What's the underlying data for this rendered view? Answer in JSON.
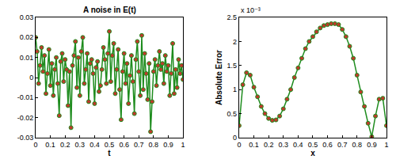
{
  "chart_data": [
    {
      "type": "line",
      "title": "A noise in E(t)",
      "xlabel": "t",
      "x": [
        0,
        0.01,
        0.02,
        0.03,
        0.04,
        0.05,
        0.06,
        0.07,
        0.08,
        0.09,
        0.1,
        0.11,
        0.12,
        0.13,
        0.14,
        0.15,
        0.16,
        0.17,
        0.18,
        0.19,
        0.2,
        0.21,
        0.22,
        0.23,
        0.24,
        0.25,
        0.26,
        0.27,
        0.28,
        0.29,
        0.3,
        0.31,
        0.32,
        0.33,
        0.34,
        0.35,
        0.36,
        0.37,
        0.38,
        0.39,
        0.4,
        0.41,
        0.42,
        0.43,
        0.44,
        0.45,
        0.46,
        0.47,
        0.48,
        0.49,
        0.5,
        0.51,
        0.52,
        0.53,
        0.54,
        0.55,
        0.56,
        0.57,
        0.58,
        0.59,
        0.6,
        0.61,
        0.62,
        0.63,
        0.64,
        0.65,
        0.66,
        0.67,
        0.68,
        0.69,
        0.7,
        0.71,
        0.72,
        0.73,
        0.74,
        0.75,
        0.76,
        0.77,
        0.78,
        0.79,
        0.8,
        0.81,
        0.82,
        0.83,
        0.84,
        0.85,
        0.86,
        0.87,
        0.88,
        0.89,
        0.9,
        0.91,
        0.92,
        0.93,
        0.94,
        0.95,
        0.96,
        0.97,
        0.98,
        0.99,
        1
      ],
      "values": [
        0.02,
        0.013,
        -0.003,
        0.006,
        0.015,
        0.003,
        0.011,
        -0.008,
        0.002,
        0.014,
        -0.004,
        0.007,
        -0.009,
        0.004,
        0.01,
        -0.003,
        -0.019,
        0.008,
        0.012,
        -0.002,
        0.009,
        0.004,
        -0.014,
        0.003,
        -0.025,
        0.006,
        0.011,
        0.018,
        -0.005,
        0.01,
        -0.009,
        0.013,
        0.02,
        -0.003,
        0.004,
        0.012,
        -0.012,
        0.007,
        0.009,
        0.002,
        -0.013,
        0.005,
        0.008,
        -0.007,
        -0.004,
        0.004,
        0.015,
        0.009,
        -0.003,
        0.012,
        0.023,
        -0.002,
        0.011,
        0.017,
        -0.008,
        0.004,
        0.014,
        -0.006,
        -0.021,
        0.003,
        0.012,
        -0.003,
        0.007,
        -0.013,
        0.001,
        0.011,
        -0.002,
        -0.018,
        0.009,
        0.018,
        0.003,
        -0.009,
        0.021,
        -0.006,
        0.012,
        0.002,
        -0.011,
        0.007,
        -0.027,
        -0.012,
        0.003,
        0.009,
        -0.004,
        0.006,
        0.013,
        0.004,
        0.007,
        -0.003,
        0.011,
        0.003,
        0.006,
        -0.009,
        0.002,
        0.017,
        -0.008,
        0.004,
        -0.005,
        0.009,
        0.002,
        0.006,
        -0.001
      ],
      "xlim": [
        0,
        1
      ],
      "ylim": [
        -0.03,
        0.03
      ],
      "xticks": [
        0,
        0.1,
        0.2,
        0.3,
        0.4,
        0.5,
        0.6,
        0.7,
        0.8,
        0.9,
        1
      ],
      "yticks": [
        -0.03,
        -0.02,
        -0.01,
        0,
        0.01,
        0.02,
        0.03
      ],
      "color": "#1e8c1e",
      "marker": "circle",
      "grid": false
    },
    {
      "type": "line",
      "xlabel": "x",
      "ylabel": "Absolute Error",
      "annotations": [
        "x 10⁻³"
      ],
      "x": [
        0,
        0.025,
        0.05,
        0.075,
        0.1,
        0.125,
        0.15,
        0.175,
        0.2,
        0.225,
        0.25,
        0.275,
        0.3,
        0.325,
        0.35,
        0.375,
        0.4,
        0.425,
        0.45,
        0.475,
        0.5,
        0.525,
        0.55,
        0.575,
        0.6,
        0.625,
        0.65,
        0.675,
        0.7,
        0.725,
        0.75,
        0.775,
        0.8,
        0.825,
        0.85,
        0.875,
        0.9,
        0.925,
        0.95,
        0.975,
        1
      ],
      "values": [
        0.00025,
        0.0011,
        0.00135,
        0.0013,
        0.00105,
        0.00085,
        0.00065,
        0.0005,
        0.0004,
        0.00036,
        0.00037,
        0.00045,
        0.0006,
        0.0008,
        0.001,
        0.00125,
        0.00145,
        0.00165,
        0.00185,
        0.002,
        0.0021,
        0.0022,
        0.00228,
        0.00233,
        0.00235,
        0.00237,
        0.00237,
        0.00235,
        0.00225,
        0.0021,
        0.0019,
        0.00165,
        0.0013,
        0.00095,
        0.00065,
        0.0003,
        2e-05,
        0.00045,
        0.0008,
        0.00082,
        0.00025
      ],
      "xlim": [
        0,
        1
      ],
      "ylim": [
        0,
        0.0025
      ],
      "xticks": [
        0,
        0.1,
        0.2,
        0.3,
        0.4,
        0.5,
        0.6,
        0.7,
        0.8,
        0.9,
        1
      ],
      "yticks": [
        0,
        {
          "value": 0.0005,
          "label": "0.5"
        },
        {
          "value": 0.001,
          "label": "1"
        },
        {
          "value": 0.0015,
          "label": "1.5"
        },
        {
          "value": 0.002,
          "label": "2"
        },
        {
          "value": 0.0025,
          "label": "2.5"
        }
      ],
      "color": "#1e8c1e",
      "marker": "circle",
      "grid": false
    }
  ]
}
